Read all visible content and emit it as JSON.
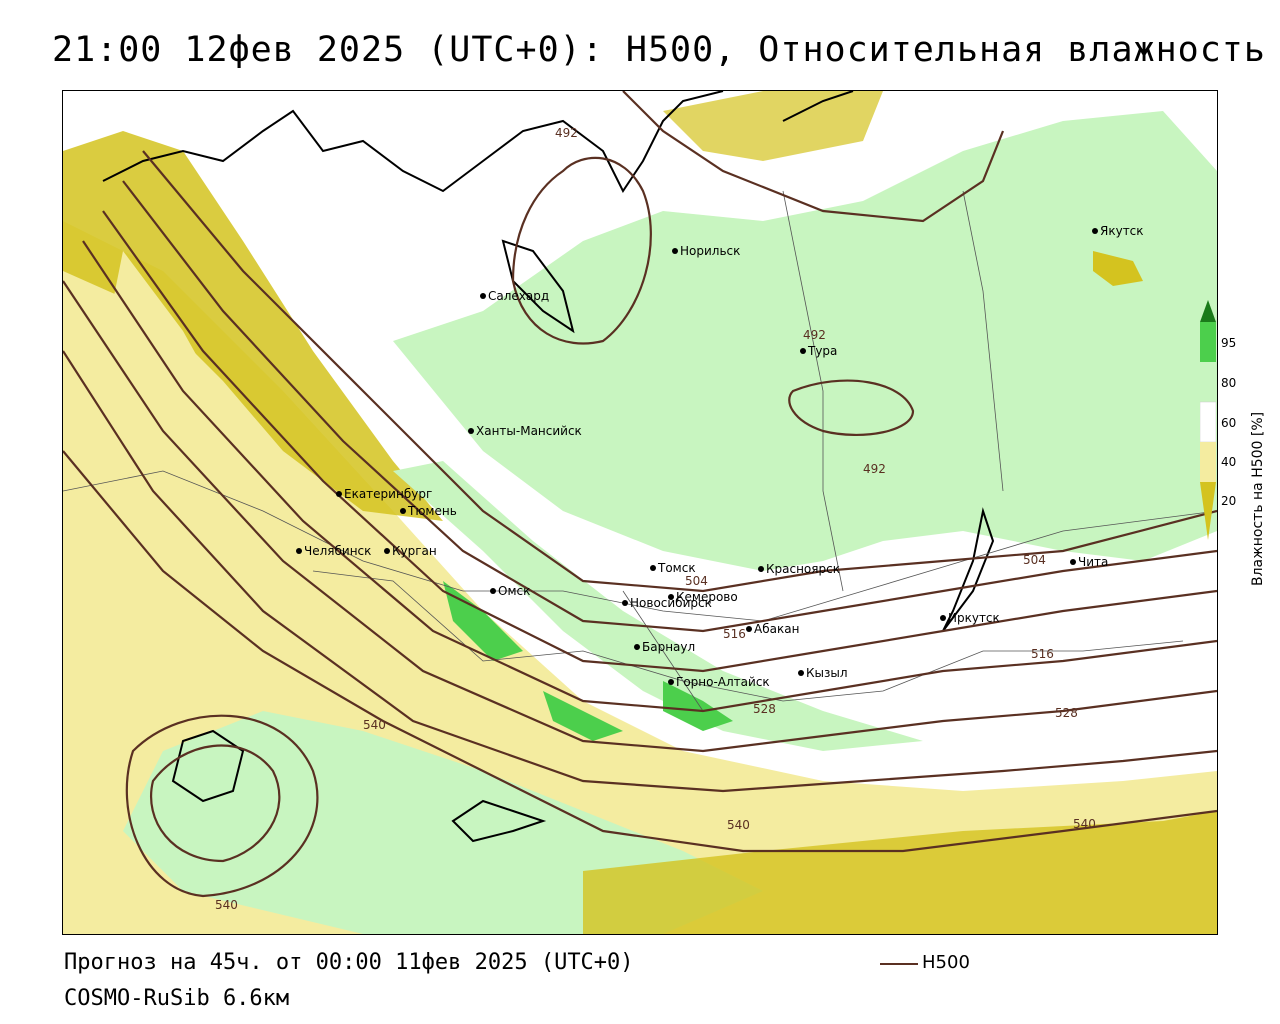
{
  "title": "21:00 12фев 2025 (UTC+0): H500, Относительная влажность",
  "footer": {
    "forecast": "Прогноз на 45ч. от 00:00 11фев 2025 (UTC+0)",
    "model": "COSMO-RuSib 6.6км"
  },
  "legend": {
    "line_label": "H500",
    "line_color": "#5a3022"
  },
  "colorbar": {
    "title": "Влажность на H500 [%]",
    "ticks": [
      "95",
      "80",
      "60",
      "40",
      "20"
    ],
    "colors": {
      "dry_dark": "#d4c31f",
      "dry": "#f4eca0",
      "moist": "#c8f5c0",
      "wet": "#4ccf4c",
      "very_wet": "#1a7a1a"
    }
  },
  "cities": [
    {
      "name": "Якутск"
    },
    {
      "name": "Норильск"
    },
    {
      "name": "Салехард"
    },
    {
      "name": "Тура"
    },
    {
      "name": "Ханты-Мансийск"
    },
    {
      "name": "Екатеринбург"
    },
    {
      "name": "Тюмень"
    },
    {
      "name": "Челябинск"
    },
    {
      "name": "Курган"
    },
    {
      "name": "Омск"
    },
    {
      "name": "Томск"
    },
    {
      "name": "Красноярск"
    },
    {
      "name": "Новосибирск"
    },
    {
      "name": "Кемерово"
    },
    {
      "name": "Абакан"
    },
    {
      "name": "Барнаул"
    },
    {
      "name": "Горно-Алтайск"
    },
    {
      "name": "Кызыл"
    },
    {
      "name": "Иркутск"
    },
    {
      "name": "Чита"
    }
  ],
  "contour_labels": [
    "492",
    "492",
    "492",
    "504",
    "504",
    "516",
    "516",
    "528",
    "528",
    "540",
    "540",
    "540",
    "540"
  ]
}
